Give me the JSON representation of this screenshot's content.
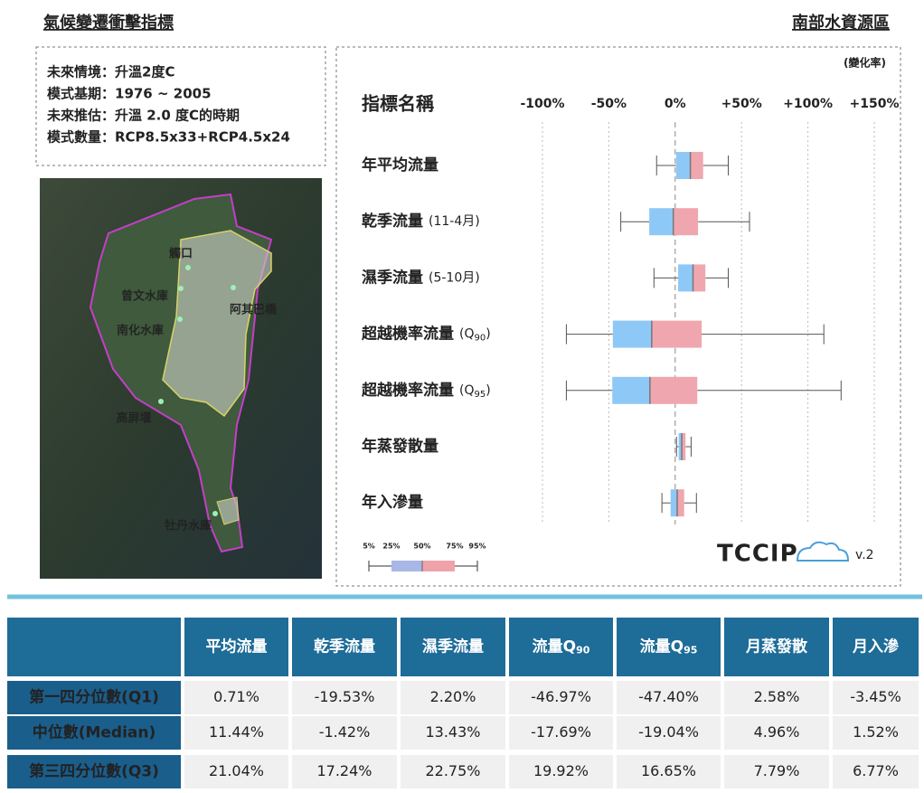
{
  "header": {
    "title": "氣候變遷衝擊指標",
    "region": "南部水資源區"
  },
  "info": [
    "未來情境：升溫2度C",
    "模式基期：1976 ~ 2005",
    "未來推估：升溫 2.0 度C的時期",
    "模式數量：RCP8.5x33+RCP4.5x24"
  ],
  "map": {
    "labels": [
      "觸口",
      "曾文水庫",
      "南化水庫",
      "阿其巴橋",
      "高屏堰",
      "牡丹水庫"
    ]
  },
  "chart_data": {
    "type": "box",
    "unit": "(變化率)",
    "category_header": "指標名稱",
    "categories": [
      {
        "name": "年平均流量"
      },
      {
        "name": "乾季流量",
        "note": "(11-4月)"
      },
      {
        "name": "濕季流量",
        "note": "(5-10月)"
      },
      {
        "name": "超越機率流量",
        "note": "(Q",
        "sub": "90",
        "note_close": ")"
      },
      {
        "name": "超越機率流量",
        "note": "(Q",
        "sub": "95",
        "note_close": ")"
      },
      {
        "name": "年蒸發散量"
      },
      {
        "name": "年入滲量"
      }
    ],
    "p5": [
      -14,
      -41,
      -16,
      -82,
      -82,
      1,
      -10
    ],
    "q1": [
      0.71,
      -19.53,
      2.2,
      -46.97,
      -47.4,
      2.58,
      -3.45
    ],
    "median": [
      11.44,
      -1.42,
      13.43,
      -17.69,
      -19.04,
      4.96,
      1.52
    ],
    "q3": [
      21.04,
      17.24,
      22.75,
      19.92,
      16.65,
      7.79,
      6.77
    ],
    "p95": [
      40,
      56,
      40,
      112,
      125,
      12,
      16
    ],
    "lower_color": "#8ec8f6",
    "upper_color": "#f0a6ae",
    "xlim": [
      -100,
      150
    ],
    "xticks": [
      {
        "value": -100,
        "label": "-100%"
      },
      {
        "value": -50,
        "label": "-50%"
      },
      {
        "value": 0,
        "label": "0%"
      },
      {
        "value": 50,
        "label": "+50%"
      },
      {
        "value": 100,
        "label": "+100%"
      },
      {
        "value": 150,
        "label": "+150%"
      }
    ],
    "grid": true,
    "legend": [
      "5%",
      "25%",
      "50%",
      "75%",
      "95%"
    ],
    "logo": {
      "text": "TCCIP",
      "version": "v.2"
    }
  },
  "table": {
    "columns": [
      {
        "text": "平均流量"
      },
      {
        "text": "乾季流量"
      },
      {
        "text": "濕季流量"
      },
      {
        "text": "流量Q",
        "sub": "90"
      },
      {
        "text": "流量Q",
        "sub": "95"
      },
      {
        "text": "月蒸發散"
      },
      {
        "text": "月入滲"
      }
    ],
    "rows": [
      {
        "header": "第一四分位數(Q1)",
        "cells": [
          "0.71%",
          "-19.53%",
          "2.20%",
          "-46.97%",
          "-47.40%",
          "2.58%",
          "-3.45%"
        ]
      },
      {
        "header": "中位數(Median)",
        "cells": [
          "11.44%",
          "-1.42%",
          "13.43%",
          "-17.69%",
          "-19.04%",
          "4.96%",
          "1.52%"
        ]
      },
      {
        "header": "第三四分位數(Q3)",
        "cells": [
          "21.04%",
          "17.24%",
          "22.75%",
          "19.92%",
          "16.65%",
          "7.79%",
          "6.77%"
        ]
      }
    ]
  }
}
